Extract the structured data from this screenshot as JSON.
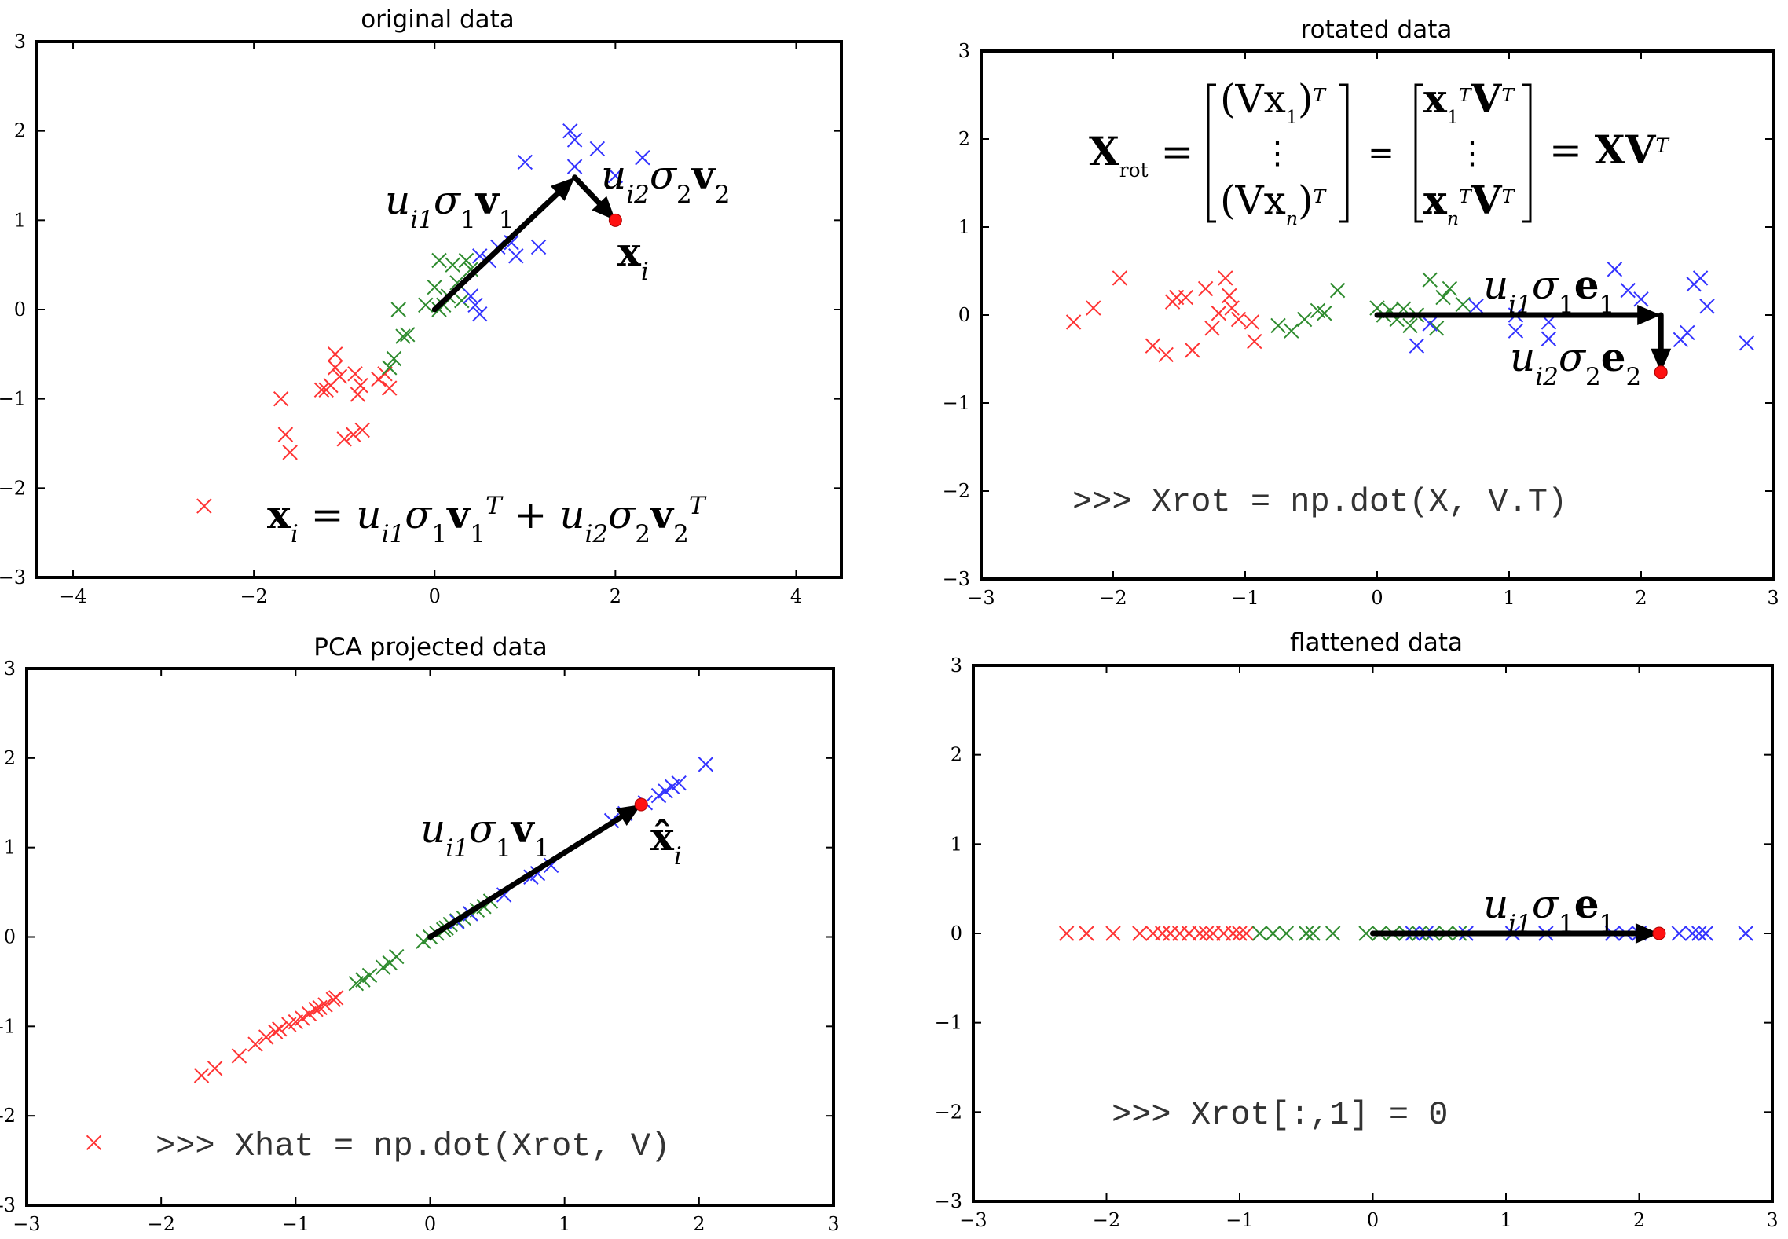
{
  "chart_data": [
    {
      "type": "scatter",
      "title": "original data",
      "xlim": [
        -4.4,
        4.5
      ],
      "ylim": [
        -3,
        3
      ],
      "xticks": [
        "−4",
        "−2",
        "0",
        "2",
        "4"
      ],
      "yticks": [
        "−3",
        "−2",
        "−1",
        "0",
        "1",
        "2",
        "3"
      ],
      "series": [
        {
          "color": "#ff3333",
          "points": [
            [
              -1.7,
              -1.0
            ],
            [
              -1.65,
              -1.4
            ],
            [
              -1.6,
              -1.6
            ],
            [
              -1.25,
              -0.9
            ],
            [
              -1.2,
              -0.9
            ],
            [
              -1.15,
              -0.85
            ],
            [
              -1.1,
              -0.65
            ],
            [
              -1.1,
              -0.5
            ],
            [
              -1.05,
              -0.75
            ],
            [
              -1.0,
              -1.45
            ],
            [
              -0.9,
              -1.4
            ],
            [
              -0.88,
              -0.72
            ],
            [
              -0.85,
              -0.95
            ],
            [
              -0.82,
              -0.85
            ],
            [
              -0.8,
              -1.35
            ],
            [
              -0.62,
              -0.78
            ],
            [
              -0.55,
              -0.72
            ],
            [
              -0.5,
              -0.88
            ],
            [
              -2.55,
              -2.2
            ]
          ]
        },
        {
          "color": "#2e8b2e",
          "points": [
            [
              -0.5,
              -0.65
            ],
            [
              -0.45,
              -0.55
            ],
            [
              -0.35,
              -0.3
            ],
            [
              -0.3,
              -0.28
            ],
            [
              -0.4,
              0.0
            ],
            [
              -0.1,
              0.05
            ],
            [
              0.0,
              0.25
            ],
            [
              0.05,
              0.55
            ],
            [
              0.1,
              0.05
            ],
            [
              0.15,
              0.15
            ],
            [
              0.2,
              0.5
            ],
            [
              0.25,
              0.3
            ],
            [
              0.3,
              0.1
            ],
            [
              0.35,
              0.55
            ],
            [
              0.4,
              0.45
            ],
            [
              0.05,
              0.0
            ]
          ]
        },
        {
          "color": "#3333ff",
          "points": [
            [
              0.4,
              0.15
            ],
            [
              0.45,
              0.05
            ],
            [
              0.5,
              -0.05
            ],
            [
              0.6,
              0.55
            ],
            [
              0.85,
              0.75
            ],
            [
              0.9,
              0.6
            ],
            [
              1.0,
              1.65
            ],
            [
              1.15,
              0.7
            ],
            [
              1.5,
              2.0
            ],
            [
              1.55,
              1.9
            ],
            [
              1.55,
              1.6
            ],
            [
              1.8,
              1.8
            ],
            [
              2.0,
              1.5
            ],
            [
              2.3,
              1.7
            ],
            [
              0.5,
              0.6
            ],
            [
              0.7,
              0.7
            ]
          ]
        }
      ],
      "point": [
        2.0,
        1.0
      ],
      "arrows": [
        [
          0,
          0,
          1.55,
          1.48
        ],
        [
          1.55,
          1.48,
          2.0,
          1.0
        ]
      ],
      "labels": {
        "l1": "u",
        "l1s": "i1",
        "l1b": "σ",
        "l1bs": "1",
        "l1c": "v",
        "l1cs": "1",
        "l2": "u",
        "l2s": "i2",
        "l2b": "σ",
        "l2bs": "2",
        "l2c": "v",
        "l2cs": "2",
        "xi": "x",
        "xis": "i",
        "formula": "x_i = u_i1 σ1 v1^T + u_i2 σ2 v2^T"
      }
    },
    {
      "type": "scatter",
      "title": "rotated data",
      "xlim": [
        -3,
        3
      ],
      "ylim": [
        -3,
        3
      ],
      "xticks": [
        "−3",
        "−2",
        "−1",
        "0",
        "1",
        "2",
        "3"
      ],
      "yticks": [
        "−3",
        "−2",
        "−1",
        "0",
        "1",
        "2",
        "3"
      ],
      "series": [
        {
          "color": "#ff3333",
          "points": [
            [
              -2.3,
              -0.08
            ],
            [
              -2.15,
              0.08
            ],
            [
              -1.95,
              0.42
            ],
            [
              -1.7,
              -0.35
            ],
            [
              -1.6,
              -0.45
            ],
            [
              -1.55,
              0.15
            ],
            [
              -1.52,
              0.2
            ],
            [
              -1.45,
              0.2
            ],
            [
              -1.4,
              -0.4
            ],
            [
              -1.3,
              0.3
            ],
            [
              -1.25,
              -0.15
            ],
            [
              -1.2,
              0.02
            ],
            [
              -1.15,
              0.42
            ],
            [
              -1.12,
              0.22
            ],
            [
              -1.1,
              0.08
            ],
            [
              -1.05,
              -0.05
            ],
            [
              -0.95,
              -0.08
            ],
            [
              -0.93,
              -0.3
            ]
          ]
        },
        {
          "color": "#2e8b2e",
          "points": [
            [
              -0.75,
              -0.12
            ],
            [
              -0.65,
              -0.18
            ],
            [
              -0.55,
              -0.05
            ],
            [
              -0.45,
              0.05
            ],
            [
              -0.4,
              0.02
            ],
            [
              -0.3,
              0.28
            ],
            [
              0.0,
              0.08
            ],
            [
              0.05,
              0.0
            ],
            [
              0.1,
              0.05
            ],
            [
              0.15,
              -0.05
            ],
            [
              0.2,
              0.07
            ],
            [
              0.25,
              -0.12
            ],
            [
              0.3,
              0.0
            ],
            [
              0.4,
              0.4
            ],
            [
              0.45,
              -0.15
            ],
            [
              0.5,
              0.2
            ],
            [
              0.55,
              0.3
            ],
            [
              0.65,
              0.12
            ]
          ]
        },
        {
          "color": "#3333ff",
          "points": [
            [
              0.3,
              -0.35
            ],
            [
              0.4,
              -0.1
            ],
            [
              0.75,
              0.1
            ],
            [
              1.05,
              0.0
            ],
            [
              1.05,
              -0.18
            ],
            [
              1.3,
              -0.08
            ],
            [
              1.3,
              -0.27
            ],
            [
              1.8,
              0.52
            ],
            [
              1.9,
              0.28
            ],
            [
              2.0,
              0.18
            ],
            [
              2.3,
              -0.28
            ],
            [
              2.35,
              -0.2
            ],
            [
              2.4,
              0.35
            ],
            [
              2.45,
              0.42
            ],
            [
              2.5,
              0.1
            ],
            [
              2.8,
              -0.32
            ]
          ]
        }
      ],
      "point": [
        2.15,
        -0.65
      ],
      "arrows": [
        [
          0,
          0,
          2.15,
          0
        ],
        [
          2.15,
          0,
          2.15,
          -0.65
        ]
      ],
      "labels": {
        "formula_lhs": "X",
        "formula_lhs_sub": "rot",
        "row1a": "(Vx",
        "row1a_sub": "1",
        "row1a_end": ")",
        "row1a_sup": "T",
        "rown": "(Vx",
        "rown_sub": "n",
        "rown_end": ")",
        "rown_sup": "T",
        "dots": "⋮",
        "r2row1": "x",
        "r2row1_sub": "1",
        "r2row1_sup": "T",
        "r2row1_end": "V",
        "r2row1_endsup": "T",
        "r2rown": "x",
        "r2rown_sub": "n",
        "r2rown_sup": "T",
        "r2rown_end": "V",
        "r2rown_endsup": "T",
        "eq": "=",
        "result": "XV",
        "result_sup": "T",
        "e1": "u",
        "e1s": "i1",
        "e1b": "σ",
        "e1bs": "1",
        "e1c": "e",
        "e1cs": "1",
        "e2": "u",
        "e2s": "i2",
        "e2b": "σ",
        "e2bs": "2",
        "e2c": "e",
        "e2cs": "2",
        "code": ">>> Xrot = np.dot(X, V.T)"
      }
    },
    {
      "type": "scatter",
      "title": "PCA projected data",
      "xlim": [
        -3,
        3
      ],
      "ylim": [
        -3,
        3
      ],
      "xticks": [
        "−3",
        "−2",
        "−1",
        "0",
        "1",
        "2",
        "3"
      ],
      "yticks": [
        "3",
        "2",
        "1",
        "0",
        "-1",
        "-2",
        "-3"
      ],
      "series": [
        {
          "color": "#ff3333",
          "points": [
            [
              -1.7,
              -1.55
            ],
            [
              -1.6,
              -1.47
            ],
            [
              -1.42,
              -1.33
            ],
            [
              -1.3,
              -1.2
            ],
            [
              -1.22,
              -1.12
            ],
            [
              -1.15,
              -1.06
            ],
            [
              -1.12,
              -1.03
            ],
            [
              -1.05,
              -0.98
            ],
            [
              -1.0,
              -0.95
            ],
            [
              -0.95,
              -0.91
            ],
            [
              -0.9,
              -0.86
            ],
            [
              -0.85,
              -0.81
            ],
            [
              -0.82,
              -0.79
            ],
            [
              -0.78,
              -0.76
            ],
            [
              -0.72,
              -0.7
            ],
            [
              -0.7,
              -0.68
            ],
            [
              -2.5,
              -2.3
            ]
          ]
        },
        {
          "color": "#2e8b2e",
          "points": [
            [
              -0.55,
              -0.52
            ],
            [
              -0.5,
              -0.48
            ],
            [
              -0.45,
              -0.43
            ],
            [
              -0.35,
              -0.34
            ],
            [
              -0.3,
              -0.29
            ],
            [
              -0.25,
              -0.22
            ],
            [
              -0.05,
              -0.05
            ],
            [
              0.0,
              0.0
            ],
            [
              0.05,
              0.04
            ],
            [
              0.1,
              0.08
            ],
            [
              0.12,
              0.1
            ],
            [
              0.15,
              0.14
            ],
            [
              0.2,
              0.18
            ],
            [
              0.25,
              0.21
            ],
            [
              0.3,
              0.26
            ],
            [
              0.35,
              0.3
            ],
            [
              0.4,
              0.34
            ],
            [
              0.45,
              0.4
            ]
          ]
        },
        {
          "color": "#3333ff",
          "points": [
            [
              0.2,
              0.17
            ],
            [
              0.3,
              0.26
            ],
            [
              0.55,
              0.47
            ],
            [
              0.75,
              0.67
            ],
            [
              0.8,
              0.71
            ],
            [
              0.9,
              0.8
            ],
            [
              1.35,
              1.3
            ],
            [
              1.45,
              1.38
            ],
            [
              1.6,
              1.5
            ],
            [
              1.7,
              1.58
            ],
            [
              1.75,
              1.63
            ],
            [
              1.8,
              1.68
            ],
            [
              1.85,
              1.72
            ],
            [
              2.05,
              1.93
            ]
          ]
        }
      ],
      "point": [
        1.57,
        1.48
      ],
      "arrows": [
        [
          0,
          0,
          1.57,
          1.48
        ]
      ],
      "labels": {
        "l1": "u",
        "l1s": "i1",
        "l1b": "σ",
        "l1bs": "1",
        "l1c": "v",
        "l1cs": "1",
        "xhat": "x̂",
        "xhats": "i",
        "code": ">>> Xhat = np.dot(Xrot, V)"
      }
    },
    {
      "type": "scatter",
      "title": "flattened data",
      "xlim": [
        -3,
        3
      ],
      "ylim": [
        -3,
        3
      ],
      "xticks": [
        "−3",
        "−2",
        "−1",
        "0",
        "1",
        "2",
        "3"
      ],
      "yticks": [
        "−3",
        "−2",
        "−1",
        "0",
        "1",
        "2",
        "3"
      ],
      "series": [
        {
          "color": "#ff3333",
          "points": [
            [
              -2.3,
              0
            ],
            [
              -2.15,
              0
            ],
            [
              -1.95,
              0
            ],
            [
              -1.75,
              0
            ],
            [
              -1.65,
              0
            ],
            [
              -1.58,
              0
            ],
            [
              -1.52,
              0
            ],
            [
              -1.45,
              0
            ],
            [
              -1.38,
              0
            ],
            [
              -1.3,
              0
            ],
            [
              -1.25,
              0
            ],
            [
              -1.2,
              0
            ],
            [
              -1.12,
              0
            ],
            [
              -1.05,
              0
            ],
            [
              -1.0,
              0
            ],
            [
              -0.95,
              0
            ]
          ]
        },
        {
          "color": "#2e8b2e",
          "points": [
            [
              -0.85,
              0
            ],
            [
              -0.75,
              0
            ],
            [
              -0.65,
              0
            ],
            [
              -0.5,
              0
            ],
            [
              -0.45,
              0
            ],
            [
              -0.3,
              0
            ],
            [
              -0.05,
              0
            ],
            [
              0.05,
              0
            ],
            [
              0.15,
              0
            ],
            [
              0.25,
              0
            ],
            [
              0.35,
              0
            ],
            [
              0.45,
              0
            ],
            [
              0.55,
              0
            ],
            [
              0.65,
              0
            ]
          ]
        },
        {
          "color": "#3333ff",
          "points": [
            [
              0.3,
              0
            ],
            [
              0.4,
              0
            ],
            [
              0.7,
              0
            ],
            [
              1.05,
              0
            ],
            [
              1.3,
              0
            ],
            [
              1.8,
              0
            ],
            [
              1.9,
              0
            ],
            [
              2.0,
              0
            ],
            [
              2.3,
              0
            ],
            [
              2.4,
              0
            ],
            [
              2.45,
              0
            ],
            [
              2.5,
              0
            ],
            [
              2.8,
              0
            ]
          ]
        }
      ],
      "point": [
        2.15,
        0
      ],
      "arrows": [
        [
          0,
          0,
          2.15,
          0
        ]
      ],
      "labels": {
        "e1": "u",
        "e1s": "i1",
        "e1b": "σ",
        "e1bs": "1",
        "e1c": "e",
        "e1cs": "1",
        "code": ">>> Xrot[:,1] = 0"
      }
    }
  ]
}
